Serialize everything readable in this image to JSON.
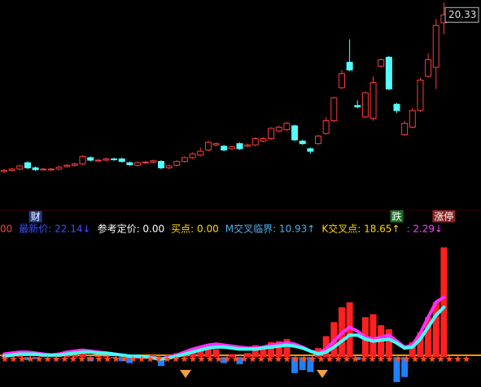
{
  "chart_data": [
    {
      "type": "candlestick",
      "up_color": "#ff3c3c",
      "down_color": "#54ffff",
      "ylim": [
        5,
        21.5
      ],
      "price_tag": 20.33,
      "open": [
        8.0,
        8.1,
        8.2,
        8.7,
        8.3,
        8.2,
        8.15,
        8.2,
        8.4,
        8.5,
        8.6,
        9.1,
        8.85,
        8.9,
        9.0,
        9.0,
        8.7,
        8.5,
        8.7,
        8.75,
        8.8,
        8.3,
        8.5,
        8.8,
        9.1,
        9.3,
        9.7,
        10.1,
        10.0,
        9.8,
        10.2,
        10.0,
        10.1,
        10.4,
        10.6,
        11.2,
        11.3,
        11.6,
        10.4,
        9.8,
        10.2,
        11.0,
        12.0,
        14.6,
        16.6,
        13.2,
        12.3,
        12.2,
        16.3,
        17.0,
        13.3,
        10.9,
        11.5,
        12.8,
        15.5,
        16.2,
        19.7
      ],
      "close": [
        8.1,
        8.2,
        8.45,
        8.3,
        8.15,
        8.2,
        8.2,
        8.35,
        8.5,
        8.6,
        9.2,
        8.9,
        8.9,
        9.0,
        8.95,
        8.8,
        8.55,
        8.7,
        8.75,
        8.85,
        8.3,
        8.45,
        8.8,
        9.1,
        9.4,
        9.6,
        10.3,
        10.2,
        9.7,
        9.95,
        9.8,
        10.1,
        10.6,
        10.6,
        11.4,
        11.5,
        11.8,
        10.5,
        10.2,
        9.6,
        10.8,
        12.0,
        13.8,
        15.7,
        16.0,
        13.1,
        14.2,
        15.0,
        16.8,
        14.5,
        12.8,
        11.8,
        12.8,
        15.2,
        16.8,
        19.5,
        20.33
      ],
      "high": [
        8.2,
        8.3,
        8.55,
        8.8,
        8.4,
        8.3,
        8.3,
        8.45,
        8.6,
        8.7,
        9.3,
        9.2,
        9.0,
        9.1,
        9.1,
        9.1,
        8.8,
        8.8,
        8.85,
        8.95,
        8.9,
        8.55,
        8.9,
        9.2,
        9.5,
        9.9,
        10.4,
        10.3,
        10.1,
        10.05,
        10.3,
        10.2,
        10.7,
        10.7,
        11.5,
        11.6,
        11.9,
        11.7,
        10.5,
        9.9,
        10.9,
        12.3,
        13.9,
        16.0,
        18.4,
        13.6,
        14.3,
        15.5,
        16.9,
        17.1,
        13.4,
        12.0,
        13.0,
        15.4,
        17.3,
        20.0,
        21.3
      ],
      "low": [
        7.9,
        8.0,
        8.1,
        8.2,
        8.05,
        8.1,
        8.05,
        8.1,
        8.3,
        8.4,
        8.5,
        8.8,
        8.75,
        8.8,
        8.85,
        8.7,
        8.45,
        8.4,
        8.6,
        8.65,
        8.2,
        8.2,
        8.4,
        8.7,
        9.0,
        9.2,
        9.6,
        10.0,
        9.6,
        9.7,
        9.7,
        9.9,
        10.0,
        10.3,
        10.5,
        11.1,
        11.2,
        10.4,
        10.1,
        9.4,
        10.1,
        10.9,
        11.9,
        14.5,
        15.9,
        13.0,
        12.2,
        12.0,
        16.2,
        14.4,
        12.6,
        10.8,
        11.4,
        12.7,
        15.4,
        14.5,
        18.8
      ],
      "annotations": [
        {
          "text": "财",
          "index": 4,
          "color": "#3c6cff"
        },
        {
          "text": "跌",
          "index": 50,
          "color": "#2ecc40"
        },
        {
          "text": "涨停",
          "index": 56,
          "color": "#ff4040"
        }
      ]
    },
    {
      "type": "indicator",
      "ylim": [
        -3,
        12
      ],
      "header": [
        {
          "text": "00",
          "color": "#ff3c3c"
        },
        {
          "text": "最新价: 22.14↓",
          "color": "#3c50ff"
        },
        {
          "text": "参考定价: 0.00",
          "color": "#ffffff"
        },
        {
          "text": "买点: 0.00",
          "color": "#ffd700"
        },
        {
          "text": "M交叉临界: 10.93↑",
          "color": "#4fb0e8"
        },
        {
          "text": "K交叉点: 18.65↑",
          "color": "#ffd700"
        },
        {
          "text": ": 2.29↓",
          "color": "#ff40ff"
        }
      ],
      "bars": {
        "up_color": "#ff2020",
        "down_color": "#2080ff",
        "values": [
          0.2,
          0.3,
          0.3,
          -0.3,
          -0.2,
          0.1,
          0.1,
          0.2,
          0.2,
          0.2,
          0.6,
          -0.4,
          0.1,
          0.1,
          -0.1,
          -0.4,
          -0.6,
          0.2,
          0.1,
          0.2,
          -0.9,
          0.2,
          0.4,
          0.6,
          0.8,
          1.0,
          1.2,
          0.8,
          -0.6,
          0.3,
          -0.7,
          0.4,
          1.2,
          0.8,
          1.5,
          1.6,
          1.8,
          -1.6,
          -1.3,
          -1.5,
          0.9,
          2.1,
          3.5,
          5.0,
          5.5,
          -0.3,
          4.0,
          4.3,
          3.2,
          2.8,
          -2.5,
          -2.0,
          1.5,
          2.5,
          4.0,
          5.5,
          11.0
        ]
      },
      "series": [
        {
          "color": "#ff30ff",
          "values": [
            0.3,
            0.4,
            0.5,
            0.5,
            0.4,
            0.3,
            0.2,
            0.3,
            0.5,
            0.6,
            0.7,
            0.6,
            0.5,
            0.4,
            0.3,
            0.2,
            0.1,
            0,
            0,
            -0.1,
            -0.2,
            0,
            0.2,
            0.5,
            0.8,
            1.0,
            1.2,
            1.3,
            1.2,
            1.1,
            1.0,
            0.9,
            0.9,
            1.0,
            1.2,
            1.3,
            1.4,
            1.3,
            1.0,
            0.6,
            0.4,
            0.8,
            1.6,
            2.4,
            3.0,
            2.6,
            2.0,
            1.8,
            2.0,
            2.2,
            1.6,
            1.0,
            1.2,
            2.4,
            4.0,
            5.5,
            6.0
          ]
        },
        {
          "color": "#40ffff",
          "values": [
            0.1,
            0.2,
            0.3,
            0.3,
            0.3,
            0.2,
            0.2,
            0.2,
            0.3,
            0.4,
            0.5,
            0.5,
            0.4,
            0.4,
            0.3,
            0.2,
            0.1,
            0.1,
            0,
            -0.1,
            -0.2,
            -0.1,
            0.1,
            0.3,
            0.5,
            0.7,
            0.9,
            1.0,
            1.0,
            0.9,
            0.8,
            0.8,
            0.8,
            0.9,
            1.0,
            1.1,
            1.2,
            1.1,
            0.9,
            0.6,
            0.3,
            0.5,
            1.0,
            1.6,
            2.2,
            2.2,
            1.8,
            1.6,
            1.7,
            1.8,
            1.4,
            0.9,
            1.0,
            1.8,
            3.0,
            4.2,
            5.0
          ]
        }
      ]
    }
  ]
}
